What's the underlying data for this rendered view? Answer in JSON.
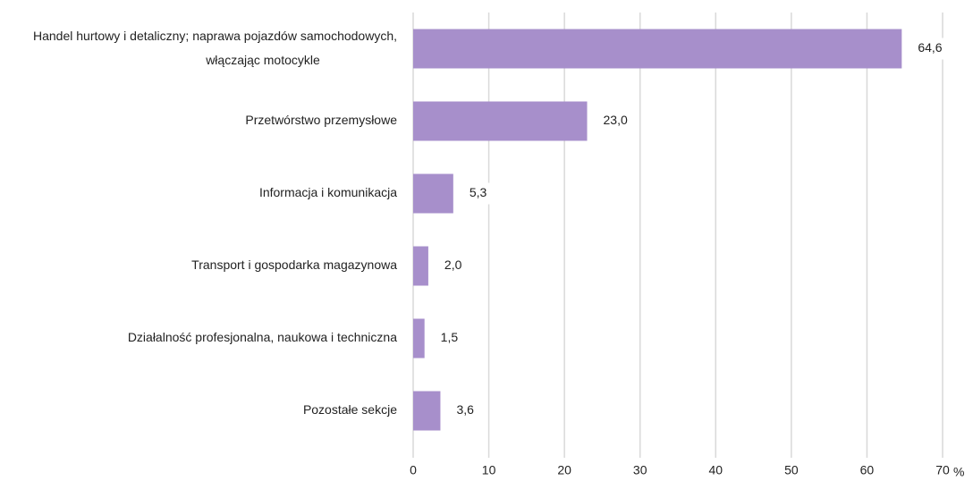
{
  "chart_data": {
    "type": "bar",
    "orientation": "horizontal",
    "categories": [
      [
        "Handel hurtowy i detaliczny; naprawa pojazdów samochodowych,",
        "włączając motocykle"
      ],
      "Przetwórstwo przemysłowe",
      "Informacja i komunikacja",
      "Transport i gospodarka magazynowa",
      "Działalność profesjonalna, naukowa i techniczna",
      "Pozostałe sekcje"
    ],
    "values": [
      64.6,
      23.0,
      5.3,
      2.0,
      1.5,
      3.6
    ],
    "value_labels": [
      "64,6",
      "23,0",
      "5,3",
      "2,0",
      "1,5",
      "3,6"
    ],
    "color": "#a78fcb",
    "xlim": [
      0,
      70
    ],
    "xticks": [
      0,
      10,
      20,
      30,
      40,
      50,
      60,
      70
    ],
    "x_unit": "%",
    "grid": true
  }
}
